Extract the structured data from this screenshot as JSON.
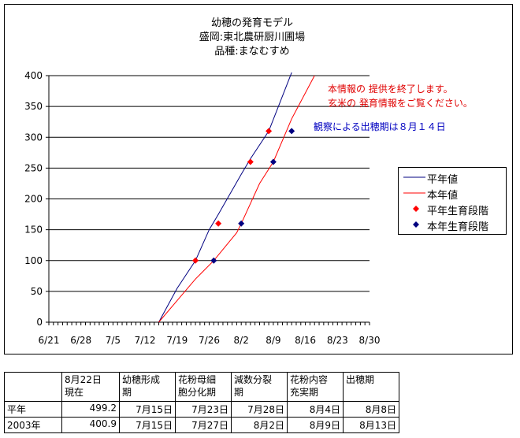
{
  "chart_data": {
    "type": "line",
    "title_lines": [
      "幼穂の発育モデル",
      "盛岡:東北農研厨川圃場",
      "品種:まなむすめ"
    ],
    "x_tick_labels": [
      "6/21",
      "6/28",
      "7/5",
      "7/12",
      "7/19",
      "7/26",
      "8/2",
      "8/9",
      "8/16",
      "8/23",
      "8/30"
    ],
    "y_tick_labels": [
      "0",
      "50",
      "100",
      "150",
      "200",
      "250",
      "300",
      "350",
      "400"
    ],
    "ylim": [
      0,
      400
    ],
    "xlim": [
      "6/21",
      "8/30"
    ],
    "grid": "horizontal",
    "legend_position": "right",
    "series": [
      {
        "name": "平年値",
        "kind": "line",
        "color": "#000080",
        "x": [
          "7/15",
          "7/19",
          "7/23",
          "7/26",
          "7/28",
          "8/2",
          "8/4",
          "8/8",
          "8/13"
        ],
        "y": [
          0,
          55,
          100,
          150,
          175,
          240,
          265,
          310,
          405
        ]
      },
      {
        "name": "本年値",
        "kind": "line",
        "color": "#ff0000",
        "x": [
          "7/15",
          "7/19",
          "7/23",
          "7/27",
          "8/1",
          "8/2",
          "8/6",
          "8/9",
          "8/13",
          "8/18"
        ],
        "y": [
          0,
          35,
          70,
          100,
          145,
          160,
          225,
          260,
          330,
          400
        ]
      },
      {
        "name": "平年生育段階",
        "kind": "marker",
        "color": "#ff0000",
        "x": [
          "7/23",
          "7/28",
          "8/4",
          "8/8"
        ],
        "y": [
          100,
          160,
          260,
          310
        ]
      },
      {
        "name": "本年生育段階",
        "kind": "marker",
        "color": "#000080",
        "x": [
          "7/27",
          "8/2",
          "8/9",
          "8/13"
        ],
        "y": [
          100,
          160,
          260,
          310
        ]
      }
    ],
    "annotations": {
      "notice_line1": "本情報の 提供を終了します。",
      "notice_line2": "玄米の 発育情報をご覧ください。",
      "observation": "観察による出穂期は８月１４日"
    }
  },
  "table": {
    "headers": [
      [
        "",
        ""
      ],
      [
        "8月22日",
        "現在"
      ],
      [
        "幼穂形成",
        "期"
      ],
      [
        "花粉母細",
        "胞分化期"
      ],
      [
        "減数分裂",
        "期"
      ],
      [
        "花粉内容",
        "充実期"
      ],
      [
        "出穂期",
        ""
      ]
    ],
    "rows": [
      [
        "平年",
        "499.2",
        "7月15日",
        "7月23日",
        "7月28日",
        "8月4日",
        "8月8日"
      ],
      [
        "2003年",
        "400.9",
        "7月15日",
        "7月27日",
        "8月2日",
        "8月9日",
        "8月13日"
      ]
    ]
  }
}
